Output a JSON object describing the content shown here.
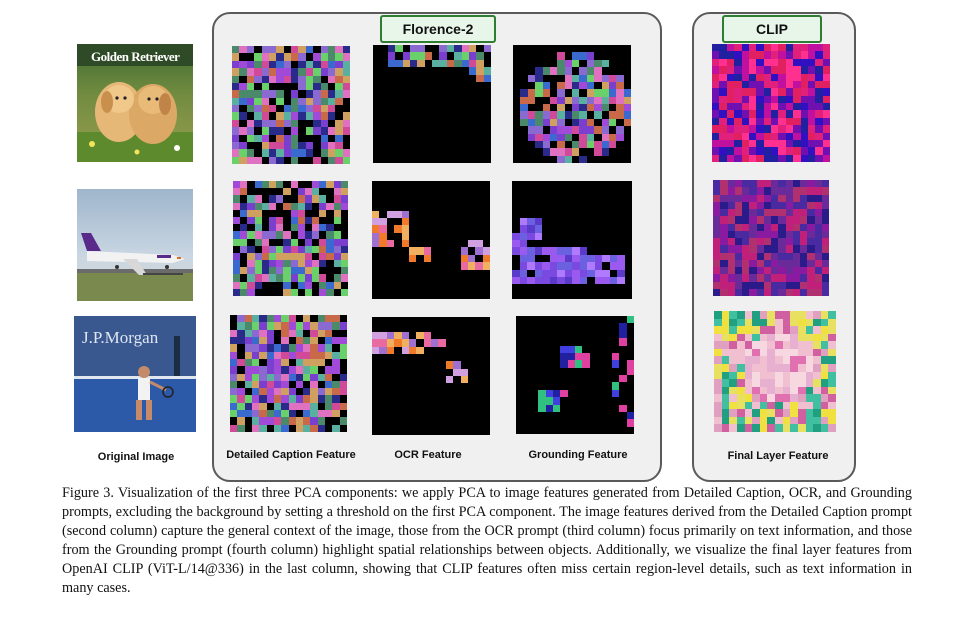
{
  "figure": {
    "group_florence": "Florence-2",
    "group_clip": "CLIP",
    "labels": {
      "original": "Original Image",
      "detailed_caption": "Detailed Caption Feature",
      "ocr": "OCR Feature",
      "grounding": "Grounding Feature",
      "final_layer": "Final Layer Feature"
    },
    "image_texts": {
      "puppies_title": "Golden Retriever",
      "tennis_banner": "J.P.Morgan"
    },
    "colors": {
      "panel_border": "#5a5a5a",
      "panel_fill": "#f0f0f0",
      "pill_border": "#2e7d32",
      "pill_fill": "#e8f5e9"
    }
  },
  "caption": {
    "text": "Figure 3. Visualization of the first three PCA components: we apply PCA to image features generated from Detailed Caption, OCR, and Grounding prompts, excluding the background by setting a threshold on the first PCA component. The image features derived from the Detailed Caption prompt (second column) capture the general context of the image, those from the OCR prompt (third column) focus primarily on text information, and those from the Grounding prompt (fourth column) highlight spatial relationships between objects. Additionally, we visualize the final layer features from OpenAI CLIP (ViT-L/14@336) in the last column, showing that CLIP features often miss certain region-level details, such as text information in many cases."
  }
}
